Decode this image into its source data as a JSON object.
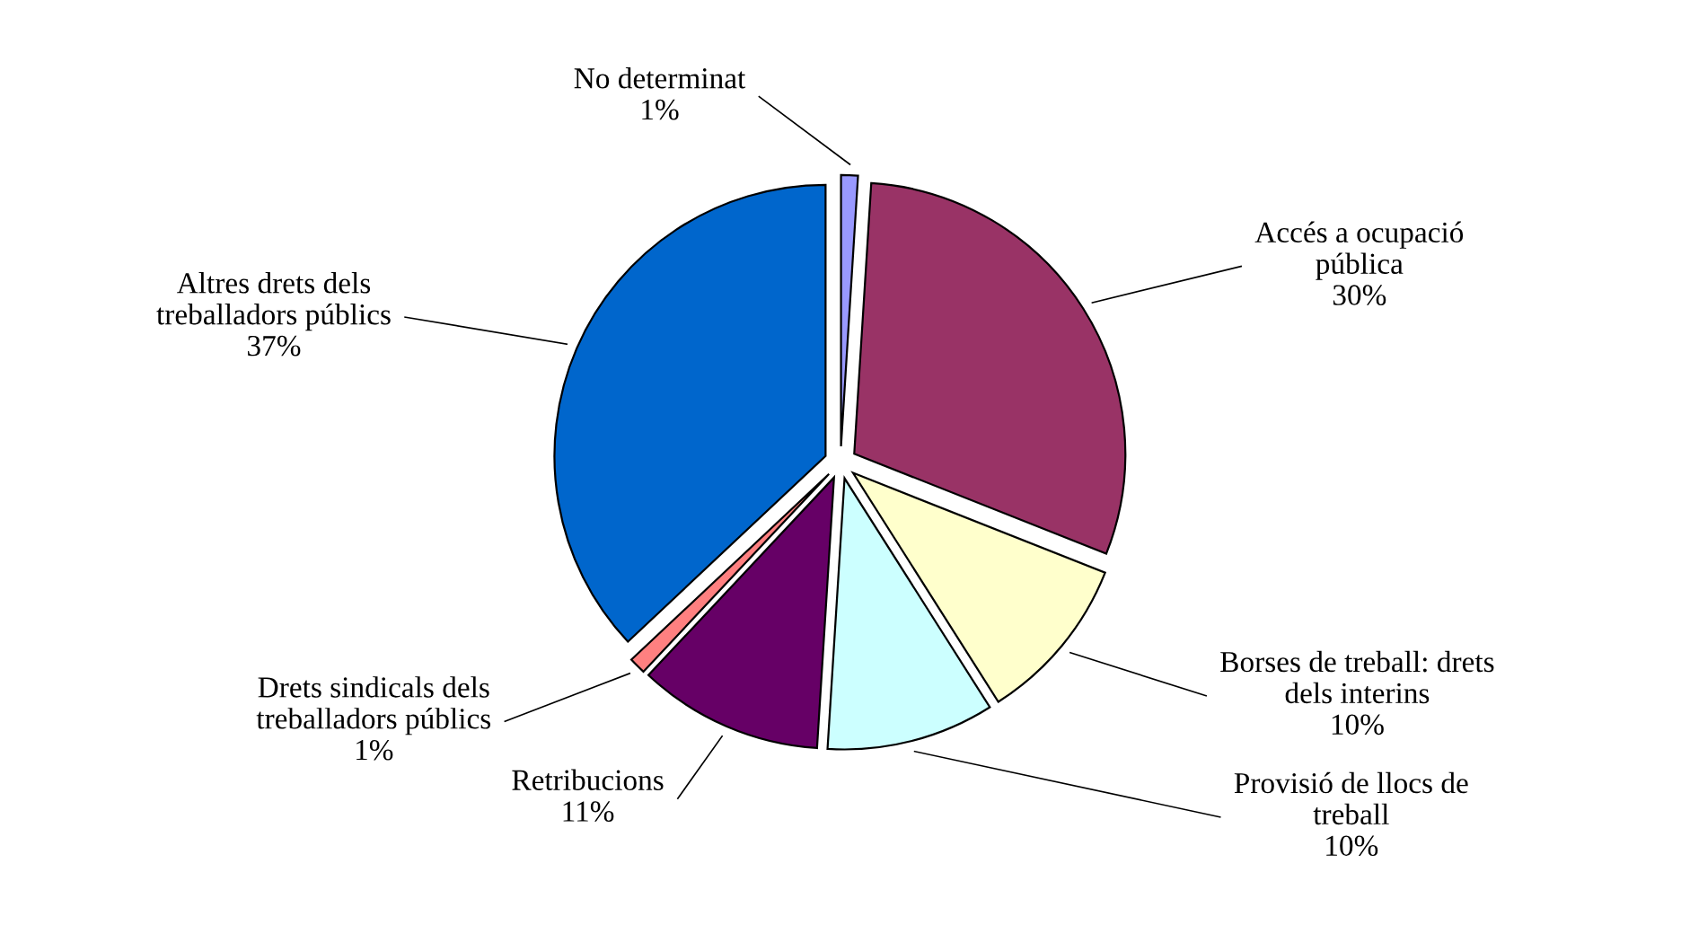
{
  "chart_data": {
    "type": "pie",
    "categories": [
      "No determinat",
      "Accés a ocupació\npública",
      "Borses de treball: drets\ndels interins",
      "Provisió de llocs de\ntreball",
      "Retribucions",
      "Drets sindicals dels\ntreballadors públics",
      "Altres drets dels\ntreballadors públics"
    ],
    "values": [
      1,
      30,
      10,
      10,
      11,
      1,
      37
    ],
    "value_labels": [
      "1%",
      "30%",
      "10%",
      "10%",
      "11%",
      "1%",
      "37%"
    ],
    "colors": [
      "#9999ff",
      "#993366",
      "#ffffcc",
      "#ccffff",
      "#660066",
      "#ff8080",
      "#0066cc"
    ]
  }
}
